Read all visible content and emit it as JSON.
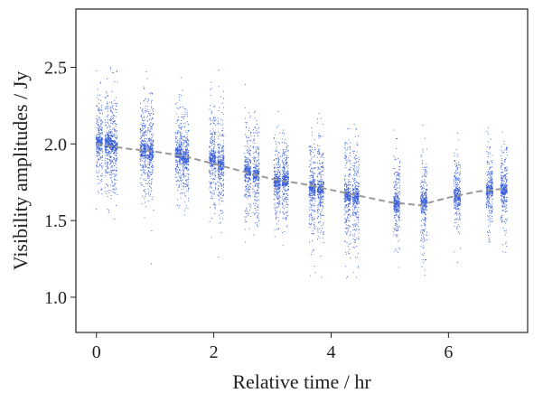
{
  "chart_data": {
    "type": "scatter",
    "xlabel": "Relative time / hr",
    "ylabel": "Visibility amplitudes / Jy",
    "xlim": [
      -0.35,
      7.35
    ],
    "ylim": [
      0.77,
      2.88
    ],
    "xticks": [
      0,
      2,
      4,
      6
    ],
    "yticks": [
      1.0,
      1.5,
      2.0,
      2.5
    ],
    "xtick_labels": [
      "0",
      "2",
      "4",
      "6"
    ],
    "ytick_labels": [
      "1.0",
      "1.5",
      "2.0",
      "2.5"
    ],
    "grid": false,
    "legend": "none",
    "scatter_color": "#3a5fd9",
    "model_line_color": "#999999",
    "series": [
      {
        "kind": "scatter",
        "x_center": [
          0.05,
          0.2,
          0.3,
          0.8,
          0.92,
          1.4,
          1.52,
          1.98,
          2.12,
          2.58,
          2.72,
          3.08,
          3.22,
          3.68,
          3.82,
          4.28,
          4.42,
          5.12,
          5.58,
          6.15,
          6.7,
          6.95
        ],
        "y_center": [
          2.01,
          2.0,
          1.99,
          1.96,
          1.95,
          1.94,
          1.91,
          1.9,
          1.87,
          1.82,
          1.8,
          1.76,
          1.76,
          1.71,
          1.7,
          1.66,
          1.65,
          1.61,
          1.61,
          1.66,
          1.7,
          1.7
        ],
        "y_spread": [
          0.22,
          0.24,
          0.25,
          0.22,
          0.22,
          0.21,
          0.22,
          0.23,
          0.23,
          0.21,
          0.22,
          0.2,
          0.2,
          0.24,
          0.23,
          0.26,
          0.25,
          0.2,
          0.22,
          0.19,
          0.2,
          0.2
        ]
      },
      {
        "kind": "line",
        "style": "dashed",
        "x": [
          0.0,
          0.5,
          1.0,
          1.5,
          2.0,
          2.5,
          3.0,
          3.5,
          4.0,
          4.5,
          5.0,
          5.5,
          6.0,
          6.5,
          7.0
        ],
        "y": [
          2.0,
          1.97,
          1.95,
          1.92,
          1.87,
          1.82,
          1.77,
          1.74,
          1.7,
          1.66,
          1.62,
          1.6,
          1.65,
          1.69,
          1.71
        ]
      }
    ]
  }
}
